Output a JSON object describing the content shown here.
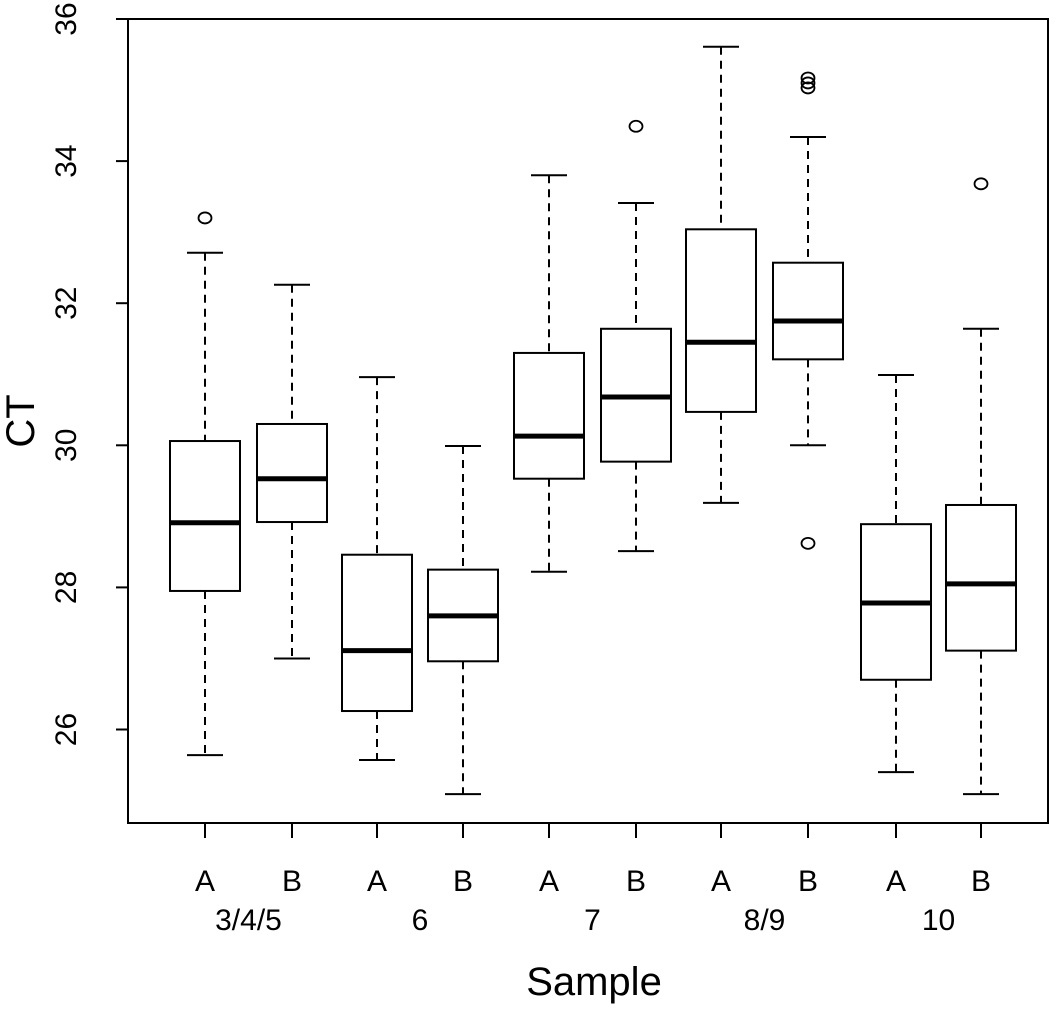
{
  "chart_data": {
    "type": "boxplot",
    "title": "",
    "xlabel": "Sample",
    "ylabel": "CT",
    "ylim": [
      24.9,
      36
    ],
    "yticks": [
      26,
      28,
      30,
      32,
      34,
      36
    ],
    "ytick_labels": [
      "26",
      "28",
      "30",
      "32",
      "34",
      "36"
    ],
    "grid": false,
    "groups": [
      {
        "label": "3/4/5",
        "boxes": [
          {
            "label": "A",
            "whisker_low": 25.64,
            "q1": 27.95,
            "median": 28.91,
            "q3": 30.06,
            "whisker_high": 32.71,
            "outliers": [
              33.2
            ]
          },
          {
            "label": "B",
            "whisker_low": 27.0,
            "q1": 28.92,
            "median": 29.53,
            "q3": 30.3,
            "whisker_high": 32.26,
            "outliers": []
          }
        ]
      },
      {
        "label": "6",
        "boxes": [
          {
            "label": "A",
            "whisker_low": 25.57,
            "q1": 26.26,
            "median": 27.11,
            "q3": 28.46,
            "whisker_high": 30.96,
            "outliers": []
          },
          {
            "label": "B",
            "whisker_low": 25.09,
            "q1": 26.96,
            "median": 27.6,
            "q3": 28.25,
            "whisker_high": 29.99,
            "outliers": []
          }
        ]
      },
      {
        "label": "7",
        "boxes": [
          {
            "label": "A",
            "whisker_low": 28.22,
            "q1": 29.53,
            "median": 30.13,
            "q3": 31.3,
            "whisker_high": 33.8,
            "outliers": []
          },
          {
            "label": "B",
            "whisker_low": 28.51,
            "q1": 29.77,
            "median": 30.68,
            "q3": 31.64,
            "whisker_high": 33.41,
            "outliers": [
              34.49
            ]
          }
        ]
      },
      {
        "label": "8/9",
        "boxes": [
          {
            "label": "A",
            "whisker_low": 29.19,
            "q1": 30.47,
            "median": 31.45,
            "q3": 33.04,
            "whisker_high": 35.61,
            "outliers": []
          },
          {
            "label": "B",
            "whisker_low": 30.0,
            "q1": 31.21,
            "median": 31.75,
            "q3": 32.57,
            "whisker_high": 34.34,
            "outliers": [
              35.17,
              35.1,
              35.03,
              28.62
            ]
          }
        ]
      },
      {
        "label": "10",
        "boxes": [
          {
            "label": "A",
            "whisker_low": 25.4,
            "q1": 26.7,
            "median": 27.78,
            "q3": 28.89,
            "whisker_high": 30.99,
            "outliers": []
          },
          {
            "label": "B",
            "whisker_low": 25.09,
            "q1": 27.11,
            "median": 28.05,
            "q3": 29.16,
            "whisker_high": 31.64,
            "outliers": [
              33.68
            ]
          }
        ]
      }
    ]
  }
}
